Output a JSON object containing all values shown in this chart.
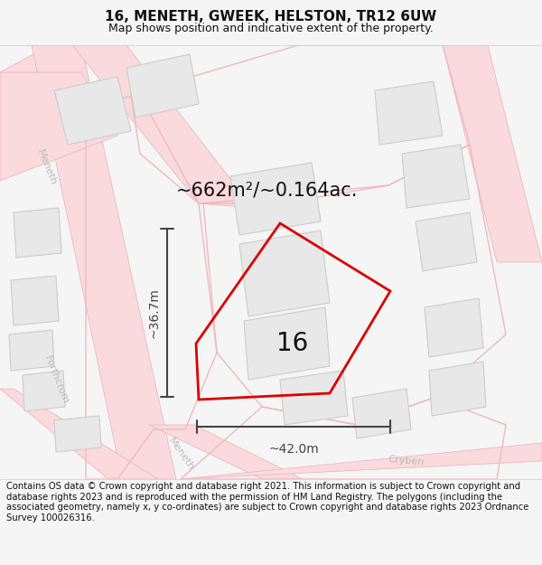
{
  "title": "16, MENETH, GWEEK, HELSTON, TR12 6UW",
  "subtitle": "Map shows position and indicative extent of the property.",
  "footer": "Contains OS data © Crown copyright and database right 2021. This information is subject to Crown copyright and database rights 2023 and is reproduced with the permission of HM Land Registry. The polygons (including the associated geometry, namely x, y co-ordinates) are subject to Crown copyright and database rights 2023 Ordnance Survey 100026316.",
  "area_label": "~662m²/~0.164ac.",
  "number_label": "16",
  "dim_horiz": "~42.0m",
  "dim_vert": "~36.7m",
  "bg_color": "#f5f5f5",
  "map_bg": "#ffffff",
  "road_color": "#fadadd",
  "road_outline": "#e8b0b8",
  "building_fill": "#e8e8e8",
  "building_outline": "#cccccc",
  "plot_color": "#dd0000",
  "dim_color": "#444444",
  "title_fontsize": 11,
  "subtitle_fontsize": 9,
  "footer_fontsize": 7.2,
  "label_fontsize": 15,
  "number_fontsize": 20,
  "dim_fontsize": 10,
  "road_label_color": "#bbbbbb",
  "road_label_size": 8
}
